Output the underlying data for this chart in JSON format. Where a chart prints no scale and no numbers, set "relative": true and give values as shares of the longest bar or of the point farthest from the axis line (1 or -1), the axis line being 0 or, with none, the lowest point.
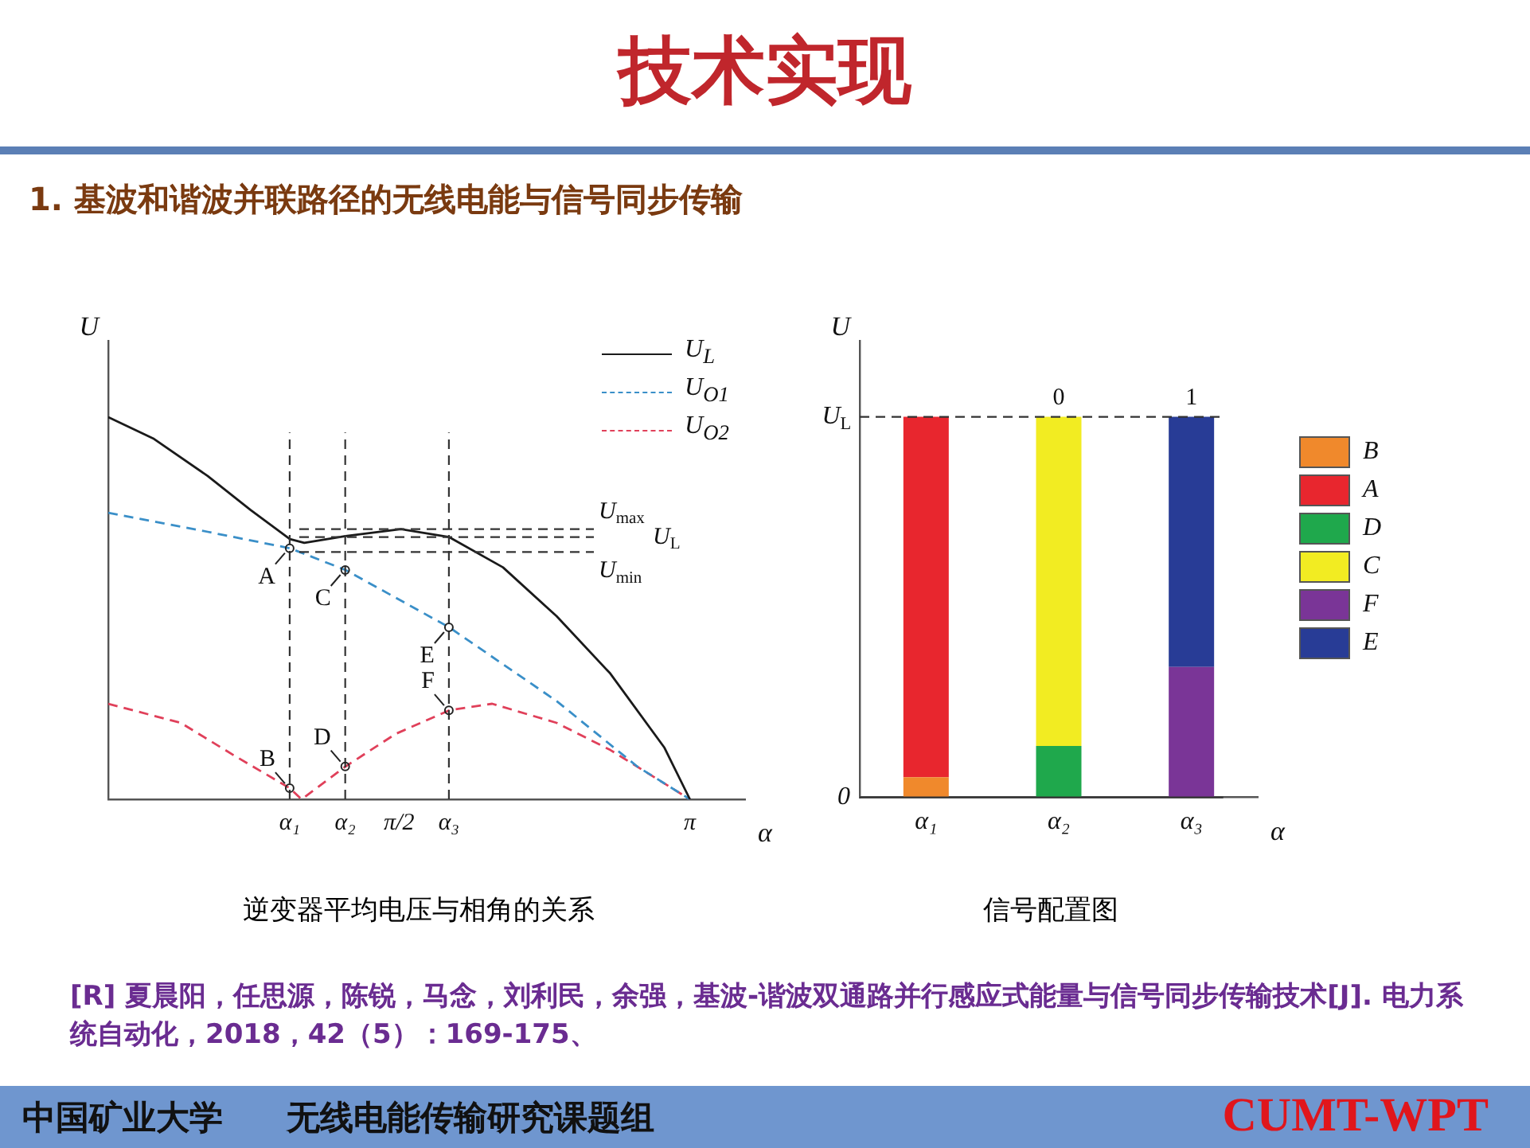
{
  "chart_data": [
    {
      "type": "line",
      "title": "逆变器平均电压与相角的关系",
      "xlabel": "α",
      "ylabel": "U",
      "relative": true,
      "legend": "top right",
      "marker": "none",
      "xlim": [
        0,
        3.44
      ],
      "xticks": [
        {
          "value": 0.98,
          "label": "α₁"
        },
        {
          "value": 1.28,
          "label": "α₂"
        },
        {
          "value": 1.5708,
          "label": "π/2"
        },
        {
          "value": 1.84,
          "label": "α₃"
        },
        {
          "value": 3.1416,
          "label": "π"
        }
      ],
      "series": [
        {
          "name": "U$_{L}$",
          "color": "#1a1a1a",
          "line_style": "solid",
          "x": [
            0,
            0.247,
            0.537,
            0.769,
            0.981,
            1.059,
            1.282,
            1.581,
            1.842,
            2.132,
            2.422,
            2.712,
            3.003,
            3.142
          ],
          "values": [
            1.0,
            0.943,
            0.846,
            0.757,
            0.681,
            0.671,
            0.689,
            0.707,
            0.686,
            0.607,
            0.479,
            0.329,
            0.136,
            0
          ]
        },
        {
          "name": "U$_{O1}$",
          "color": "#3a8fc8",
          "line_style": "dashed",
          "x": [
            0,
            0.537,
            0.981,
            1.282,
            1.842,
            2.422,
            2.857,
            3.142
          ],
          "values": [
            0.75,
            0.7,
            0.657,
            0.6,
            0.45,
            0.257,
            0.086,
            0
          ]
        },
        {
          "name": "U$_{O2}$",
          "color": "#e0405a",
          "line_style": "dashed",
          "x": [
            0,
            0.392,
            0.682,
            0.981,
            1.044,
            1.282,
            1.552,
            1.842,
            2.074,
            2.422,
            2.712,
            3.142
          ],
          "values": [
            0.25,
            0.2,
            0.114,
            0.029,
            0,
            0.086,
            0.171,
            0.233,
            0.25,
            0.2,
            0.129,
            0
          ]
        }
      ],
      "ref_lines": [
        {
          "axis": "y",
          "value": 0.707,
          "label": "U$_{max}$",
          "line_style": "dashed"
        },
        {
          "axis": "y",
          "value": 0.686,
          "label": "U$_{L}$",
          "line_style": "dashed"
        },
        {
          "axis": "y",
          "value": 0.647,
          "label": "U$_{min}$",
          "line_style": "dashed"
        },
        {
          "axis": "x",
          "value": 0.98,
          "line_style": "dashed"
        },
        {
          "axis": "x",
          "value": 1.28,
          "line_style": "dashed"
        },
        {
          "axis": "x",
          "value": 1.84,
          "line_style": "dashed"
        }
      ],
      "annotations": [
        "技术实现",
        "1. 基波和谐波并联路径的无线电能与信号同步传输",
        "[R] 夏晨阳，任思源，陈锐，马念，刘利民，余强，基波-谐波双通路并行感应式能量与信号同步传输技术[J]. 电力系统自动化，2018，42（5）：169-175、",
        "中国矿业大学",
        "无线电能传输研究课题组",
        "CUMT-WPT",
        {
          "text": "A",
          "x": 0.98,
          "y": 0.657
        },
        {
          "text": "B",
          "x": 0.98,
          "y": 0.029
        },
        {
          "text": "C",
          "x": 1.28,
          "y": 0.6
        },
        {
          "text": "D",
          "x": 1.28,
          "y": 0.086
        },
        {
          "text": "E",
          "x": 1.84,
          "y": 0.45
        },
        {
          "text": "F",
          "x": 1.84,
          "y": 0.233
        }
      ]
    },
    {
      "type": "bar",
      "title": "信号配置图",
      "xlabel": "α",
      "ylabel": "U",
      "relative": true,
      "stacked": true,
      "legend": "right",
      "categories": [
        "α₁",
        "α₂",
        "α₃"
      ],
      "series": [
        {
          "name": "B",
          "color": "#f0892c",
          "values": [
            0.053,
            null,
            null
          ]
        },
        {
          "name": "A",
          "color": "#e8262e",
          "values": [
            0.947,
            null,
            null
          ]
        },
        {
          "name": "D",
          "color": "#1fa84c",
          "values": [
            null,
            0.135,
            null
          ]
        },
        {
          "name": "C",
          "color": "#f2ec22",
          "values": [
            null,
            0.865,
            null
          ]
        },
        {
          "name": "F",
          "color": "#7a3597",
          "values": [
            null,
            null,
            0.343
          ]
        },
        {
          "name": "E",
          "color": "#283c96",
          "values": [
            null,
            null,
            0.657
          ]
        }
      ],
      "ref_lines": [
        {
          "axis": "y",
          "value": 1,
          "label": "U$_{L}$",
          "line_style": "dashed"
        },
        {
          "axis": "y",
          "value": 0,
          "label": "0",
          "line_style": "solid"
        }
      ],
      "annotations": [
        {
          "text": "0",
          "x": "α₂",
          "y": 1
        },
        {
          "text": "1",
          "x": "α₃",
          "y": 1
        }
      ]
    }
  ]
}
